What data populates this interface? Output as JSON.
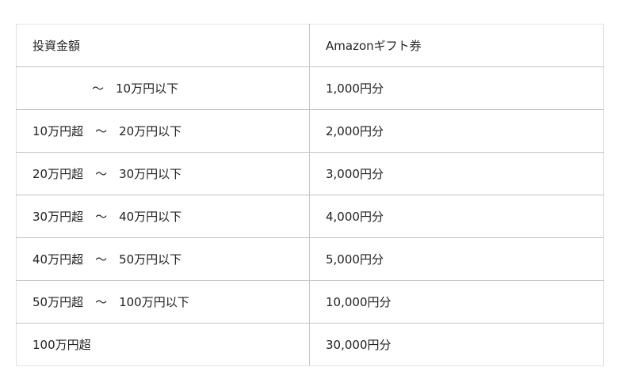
{
  "table": {
    "headers": [
      "投資金額",
      "Amazonギフト券"
    ],
    "rows": [
      [
        "　　　　　～　10万円以下",
        "1,000円分"
      ],
      [
        "10万円超　～　20万円以下",
        "2,000円分"
      ],
      [
        "20万円超　～　30万円以下",
        "3,000円分"
      ],
      [
        "30万円超　～　40万円以下",
        "4,000円分"
      ],
      [
        "40万円超　～　50万円以下",
        "5,000円分"
      ],
      [
        "50万円超　～　100万円以下",
        "10,000円分"
      ],
      [
        "100万円超",
        "30,000円分"
      ]
    ]
  }
}
